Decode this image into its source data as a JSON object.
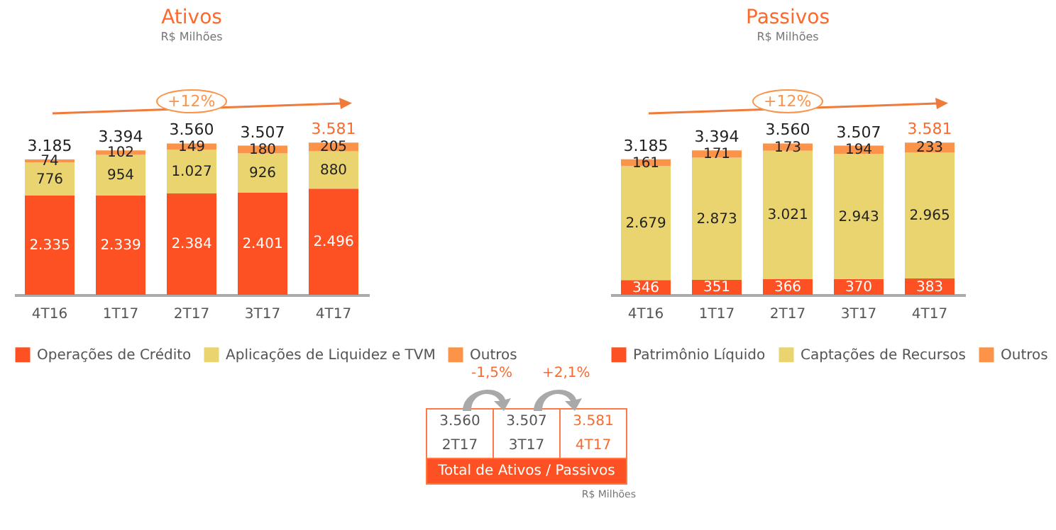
{
  "chart_data": [
    {
      "type": "bar",
      "stacked": true,
      "title": "Ativos",
      "subtitle": "R$ Milhões",
      "categories": [
        "4T16",
        "1T17",
        "2T17",
        "3T17",
        "4T17"
      ],
      "series": [
        {
          "name": "Operações de Crédito",
          "color": "#fd5123",
          "values": [
            2335,
            2339,
            2384,
            2401,
            2496
          ],
          "value_labels": [
            "2.335",
            "2.339",
            "2.384",
            "2.401",
            "2.496"
          ]
        },
        {
          "name": "Aplicações de Liquidez e TVM",
          "color": "#e9d46f",
          "values": [
            776,
            954,
            1027,
            926,
            880
          ],
          "value_labels": [
            "776",
            "954",
            "1.027",
            "926",
            "880"
          ]
        },
        {
          "name": "Outros",
          "color": "#fb9448",
          "values": [
            74,
            102,
            149,
            180,
            205
          ],
          "value_labels": [
            "74",
            "102",
            "149",
            "180",
            "205"
          ]
        }
      ],
      "totals": [
        "3.185",
        "3.394",
        "3.560",
        "3.507",
        "3.581"
      ],
      "annotations": [
        "+12%"
      ],
      "legend": "bottom",
      "tick_labels": "x"
    },
    {
      "type": "bar",
      "stacked": true,
      "title": "Passivos",
      "subtitle": "R$ Milhões",
      "categories": [
        "4T16",
        "1T17",
        "2T17",
        "3T17",
        "4T17"
      ],
      "series": [
        {
          "name": "Patrimônio Líquido",
          "color": "#fd5123",
          "values": [
            346,
            351,
            366,
            370,
            383
          ],
          "value_labels": [
            "346",
            "351",
            "366",
            "370",
            "383"
          ]
        },
        {
          "name": "Captações de Recursos",
          "color": "#e9d46f",
          "values": [
            2679,
            2873,
            3021,
            2943,
            2965
          ],
          "value_labels": [
            "2.679",
            "2.873",
            "3.021",
            "2.943",
            "2.965"
          ]
        },
        {
          "name": "Outros",
          "color": "#fb9448",
          "values": [
            161,
            171,
            173,
            194,
            233
          ],
          "value_labels": [
            "161",
            "171",
            "173",
            "194",
            "233"
          ]
        }
      ],
      "totals": [
        "3.185",
        "3.394",
        "3.560",
        "3.507",
        "3.581"
      ],
      "annotations": [
        "+12%"
      ],
      "legend": "bottom",
      "tick_labels": "x"
    },
    {
      "type": "other",
      "title": "Total de Ativos / Passivos",
      "annotations": [
        "-1,5%",
        "+2,1%",
        "3.560",
        "2T17",
        "3.507",
        "3T17",
        "3.581",
        "4T17",
        "R$ Milhões"
      ]
    }
  ]
}
